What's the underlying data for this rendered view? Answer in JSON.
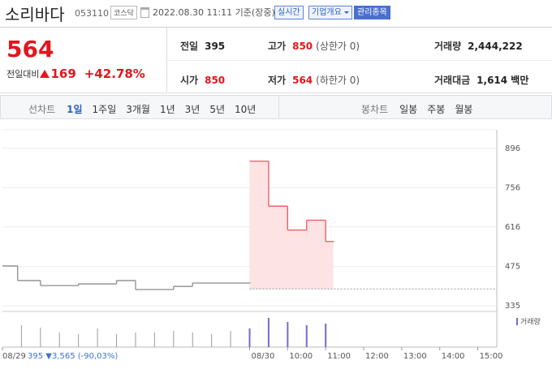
{
  "header": {
    "title": "소리바다",
    "code": "053110",
    "market": "코스닥",
    "timestamp": "2022.08.30 11:11 기준(장중)",
    "buttons": [
      "실시간",
      "기업개요",
      "관리종목"
    ]
  },
  "price": {
    "current": 564,
    "change_label": "전일대비",
    "change": 169,
    "change_percent": "+42.78%",
    "color": "#e0171d"
  },
  "stats": [
    [
      {
        "label": "전일",
        "value": 395
      },
      {
        "label": "고가",
        "value": 850,
        "note": "(상한가 0)",
        "color": "#e0171d"
      },
      {
        "label": "거래량",
        "value": "2,444,222"
      }
    ],
    [
      {
        "label": "시가",
        "value": 850,
        "color": "#e0171d"
      },
      {
        "label": "저가",
        "value": 564,
        "note": "(하한가 0)",
        "color": "#e0171d"
      },
      {
        "label": "거래대금",
        "value": "1,614 백만"
      }
    ]
  ],
  "tabs": {
    "line_label": "선차트",
    "line": [
      "1일",
      "1주일",
      "3개월",
      "1년",
      "3년",
      "5년",
      "10년"
    ],
    "active": 0,
    "candle_label": "봉차트",
    "candle": [
      "일봉",
      "주봉",
      "월봉"
    ]
  },
  "chart_data": {
    "type": "step",
    "xlim": [
      0,
      13
    ],
    "xticks": [
      {
        "value": 0,
        "label": "08/29"
      },
      {
        "value": 6.5,
        "label": "08/30"
      },
      {
        "value": 7.5,
        "label": "10:00"
      },
      {
        "value": 8.5,
        "label": "11:00"
      },
      {
        "value": 9.5,
        "label": "12:00"
      },
      {
        "value": 10.5,
        "label": "13:00"
      },
      {
        "value": 11.5,
        "label": "14:00"
      },
      {
        "value": 12.5,
        "label": "15:00"
      }
    ],
    "ylim": [
      315,
      962
    ],
    "yticks": [
      896,
      756,
      616,
      475,
      335
    ],
    "grid": true,
    "reference_line": 395,
    "series": [
      {
        "color": "#8c8c8c",
        "x": [
          0,
          0.4,
          1,
          2,
          3,
          3.5,
          4.5,
          5,
          6.5
        ],
        "values": [
          477,
          425,
          407,
          413,
          425,
          393,
          404,
          416,
          416
        ]
      },
      {
        "color": "#e8575f",
        "fill": "#fde3e3",
        "x": [
          6.5,
          7,
          7.5,
          8,
          8.5,
          8.7
        ],
        "values": [
          850,
          690,
          605,
          640,
          564,
          564
        ]
      }
    ],
    "volume": {
      "name": "거래량",
      "vlim": [
        0,
        40
      ],
      "x": [
        0.5,
        1,
        1.5,
        2,
        2.5,
        3,
        3.5,
        4,
        4.5,
        5,
        5.5,
        6,
        6.5,
        7,
        7.5,
        8,
        8.5
      ],
      "values": [
        27,
        24,
        18,
        16,
        23,
        16,
        18,
        18,
        20,
        18,
        16,
        20,
        23,
        36,
        31,
        27,
        29
      ],
      "colors": [
        "#9a9a9a",
        "#7b68c8"
      ],
      "split": 6.5
    },
    "footnote": "395 ▼3,565 (-90,03%)"
  }
}
